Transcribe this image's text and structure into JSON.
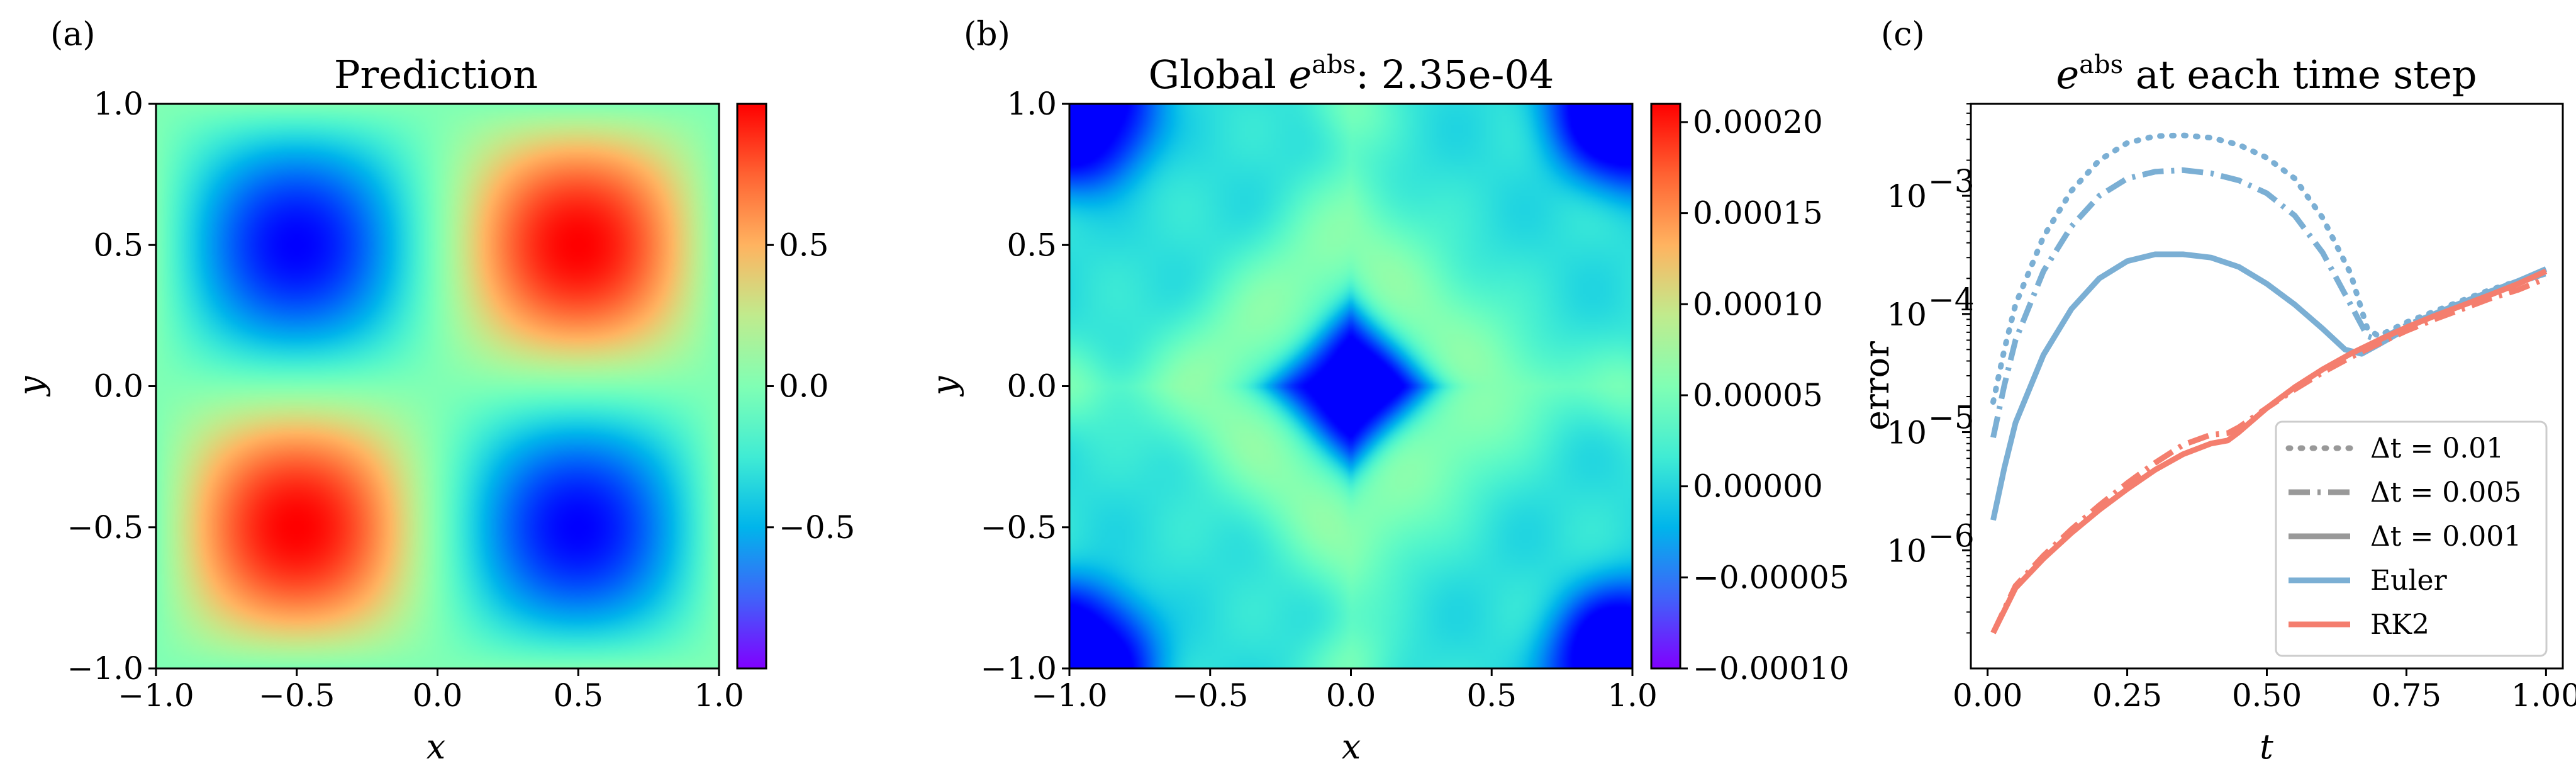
{
  "panels": {
    "a": {
      "label": "(a)",
      "title": "Prediction",
      "xlabel": "x",
      "ylabel": "y"
    },
    "b": {
      "label": "(b)",
      "title_prefix": "Global ",
      "title_e": "e",
      "title_sup": "abs",
      "title_suffix": ": 2.35e-04",
      "xlabel": "x",
      "ylabel": "y"
    },
    "c": {
      "label": "(c)",
      "title_e": "e",
      "title_sup": "abs",
      "title_suffix": " at each time step",
      "xlabel": "t",
      "ylabel": "error"
    }
  },
  "colors": {
    "euler": "#7bafd4",
    "rk2": "#f47e6e",
    "legend_gray": "#999999"
  },
  "chart_data": [
    {
      "type": "heatmap",
      "colormap": "rainbow",
      "function": "sin(pi x) sin(pi y)",
      "xlim": [
        -1.0,
        1.0
      ],
      "ylim": [
        -1.0,
        1.0
      ],
      "xticks": [
        "−1.0",
        "−0.5",
        "0.0",
        "0.5",
        "1.0"
      ],
      "xtick_values": [
        -1.0,
        -0.5,
        0.0,
        0.5,
        1.0
      ],
      "yticks": [
        "−1.0",
        "−0.5",
        "0.0",
        "0.5",
        "1.0"
      ],
      "ytick_values": [
        -1.0,
        -0.5,
        0.0,
        0.5,
        1.0
      ],
      "colorbar_range": [
        -1.0,
        1.0
      ],
      "colorbar_ticks": [
        "−0.5",
        "0.0",
        "0.5"
      ],
      "colorbar_tick_values": [
        -0.5,
        0.0,
        0.5
      ]
    },
    {
      "type": "heatmap",
      "colormap": "rainbow",
      "xlim": [
        -1.0,
        1.0
      ],
      "ylim": [
        -1.0,
        1.0
      ],
      "xticks": [
        "−1.0",
        "−0.5",
        "0.0",
        "0.5",
        "1.0"
      ],
      "xtick_values": [
        -1.0,
        -0.5,
        0.0,
        0.5,
        1.0
      ],
      "yticks": [
        "−1.0",
        "−0.5",
        "0.0",
        "0.5",
        "1.0"
      ],
      "ytick_values": [
        -1.0,
        -0.5,
        0.0,
        0.5,
        1.0
      ],
      "colorbar_range": [
        -0.0001,
        0.00021
      ],
      "colorbar_ticks": [
        "−0.00010",
        "−0.00005",
        "0.00000",
        "0.00005",
        "0.00010",
        "0.00015",
        "0.00020"
      ],
      "colorbar_tick_values": [
        -0.0001,
        -5e-05,
        0.0,
        5e-05,
        0.0001,
        0.00015,
        0.0002
      ]
    },
    {
      "type": "line",
      "x_scale": "linear",
      "y_scale": "log",
      "xlim": [
        -0.03,
        1.03
      ],
      "ylim": [
        1e-07,
        0.006
      ],
      "xticks": [
        "0.00",
        "0.25",
        "0.50",
        "0.75",
        "1.00"
      ],
      "xtick_values": [
        0.0,
        0.25,
        0.5,
        0.75,
        1.0
      ],
      "yticks": [
        "10",
        "10",
        "10",
        "10"
      ],
      "ytick_exponents": [
        "−6",
        "−5",
        "−4",
        "−3"
      ],
      "ytick_values": [
        1e-06,
        1e-05,
        0.0001,
        0.001
      ],
      "legend_position": "lower right",
      "legend": [
        {
          "label": "Δt = 0.01",
          "style": "dotted",
          "color": "#999999"
        },
        {
          "label": "Δt = 0.005",
          "style": "dashdot",
          "color": "#999999"
        },
        {
          "label": "Δt = 0.001",
          "style": "solid",
          "color": "#999999"
        },
        {
          "label": "Euler",
          "style": "solid",
          "color": "#7bafd4"
        },
        {
          "label": "RK2",
          "style": "solid",
          "color": "#f47e6e"
        }
      ],
      "series": [
        {
          "method": "Euler",
          "dt": 0.01,
          "style": "dotted",
          "x": [
            0.01,
            0.03,
            0.05,
            0.1,
            0.15,
            0.2,
            0.25,
            0.3,
            0.35,
            0.4,
            0.45,
            0.5,
            0.55,
            0.6,
            0.65,
            0.68,
            0.7,
            0.75,
            0.8,
            0.85,
            0.9,
            0.95,
            1.0
          ],
          "y": [
            1.8e-05,
            5e-05,
            0.00012,
            0.00045,
            0.0011,
            0.002,
            0.0028,
            0.0032,
            0.00325,
            0.0031,
            0.0027,
            0.0021,
            0.0014,
            0.00065,
            0.00022,
            7.5e-05,
            6.5e-05,
            8.5e-05,
            0.000105,
            0.00013,
            0.00016,
            0.00019,
            0.00023
          ]
        },
        {
          "method": "Euler",
          "dt": 0.005,
          "style": "dashdot",
          "x": [
            0.01,
            0.03,
            0.05,
            0.1,
            0.15,
            0.2,
            0.25,
            0.3,
            0.35,
            0.4,
            0.45,
            0.5,
            0.55,
            0.6,
            0.65,
            0.68,
            0.7,
            0.75,
            0.8,
            0.85,
            0.9,
            0.95,
            1.0
          ],
          "y": [
            9e-06,
            2.5e-05,
            6e-05,
            0.00023,
            0.00055,
            0.001,
            0.0014,
            0.0016,
            0.00165,
            0.00155,
            0.00135,
            0.00105,
            0.00068,
            0.00033,
            0.00012,
            6.5e-05,
            6e-05,
            8e-05,
            0.0001,
            0.000125,
            0.000155,
            0.000185,
            0.00022
          ]
        },
        {
          "method": "Euler",
          "dt": 0.001,
          "style": "solid",
          "x": [
            0.01,
            0.03,
            0.05,
            0.1,
            0.15,
            0.2,
            0.25,
            0.3,
            0.35,
            0.4,
            0.45,
            0.5,
            0.55,
            0.6,
            0.64,
            0.67,
            0.7,
            0.75,
            0.8,
            0.85,
            0.9,
            0.95,
            1.0
          ],
          "y": [
            1.8e-06,
            5e-06,
            1.2e-05,
            4.5e-05,
            0.00011,
            0.0002,
            0.00028,
            0.00032,
            0.00032,
            0.0003,
            0.00025,
            0.00018,
            0.00012,
            7.5e-05,
            5e-05,
            4.6e-05,
            5.5e-05,
            7.5e-05,
            0.0001,
            0.000125,
            0.000155,
            0.00019,
            0.00024
          ]
        },
        {
          "method": "RK2",
          "dt": 0.005,
          "style": "dashdot",
          "x": [
            0.01,
            0.05,
            0.1,
            0.15,
            0.2,
            0.25,
            0.3,
            0.35,
            0.4,
            0.43,
            0.45,
            0.5,
            0.55,
            0.6,
            0.65,
            0.7,
            0.75,
            0.8,
            0.85,
            0.9,
            0.95,
            1.0
          ],
          "y": [
            2e-07,
            5e-07,
            9e-07,
            1.5e-06,
            2.4e-06,
            3.7e-06,
            5.5e-06,
            7.8e-06,
            9.5e-06,
            9.8e-06,
            1.1e-05,
            1.6e-05,
            2.3e-05,
            3.2e-05,
            4.3e-05,
            5.6e-05,
            7.2e-05,
            9e-05,
            0.00011,
            0.000135,
            0.00016,
            0.0002
          ]
        },
        {
          "method": "RK2",
          "dt": 0.001,
          "style": "solid",
          "x": [
            0.01,
            0.05,
            0.1,
            0.15,
            0.2,
            0.25,
            0.3,
            0.35,
            0.4,
            0.43,
            0.45,
            0.5,
            0.55,
            0.6,
            0.65,
            0.7,
            0.75,
            0.8,
            0.85,
            0.9,
            0.95,
            1.0
          ],
          "y": [
            2e-07,
            4.8e-07,
            8.5e-07,
            1.4e-06,
            2.2e-06,
            3.3e-06,
            4.8e-06,
            6.5e-06,
            8e-06,
            8.5e-06,
            1e-05,
            1.6e-05,
            2.4e-05,
            3.4e-05,
            4.6e-05,
            6e-05,
            7.7e-05,
            9.6e-05,
            0.000118,
            0.000145,
            0.00018,
            0.00023
          ]
        }
      ]
    }
  ]
}
